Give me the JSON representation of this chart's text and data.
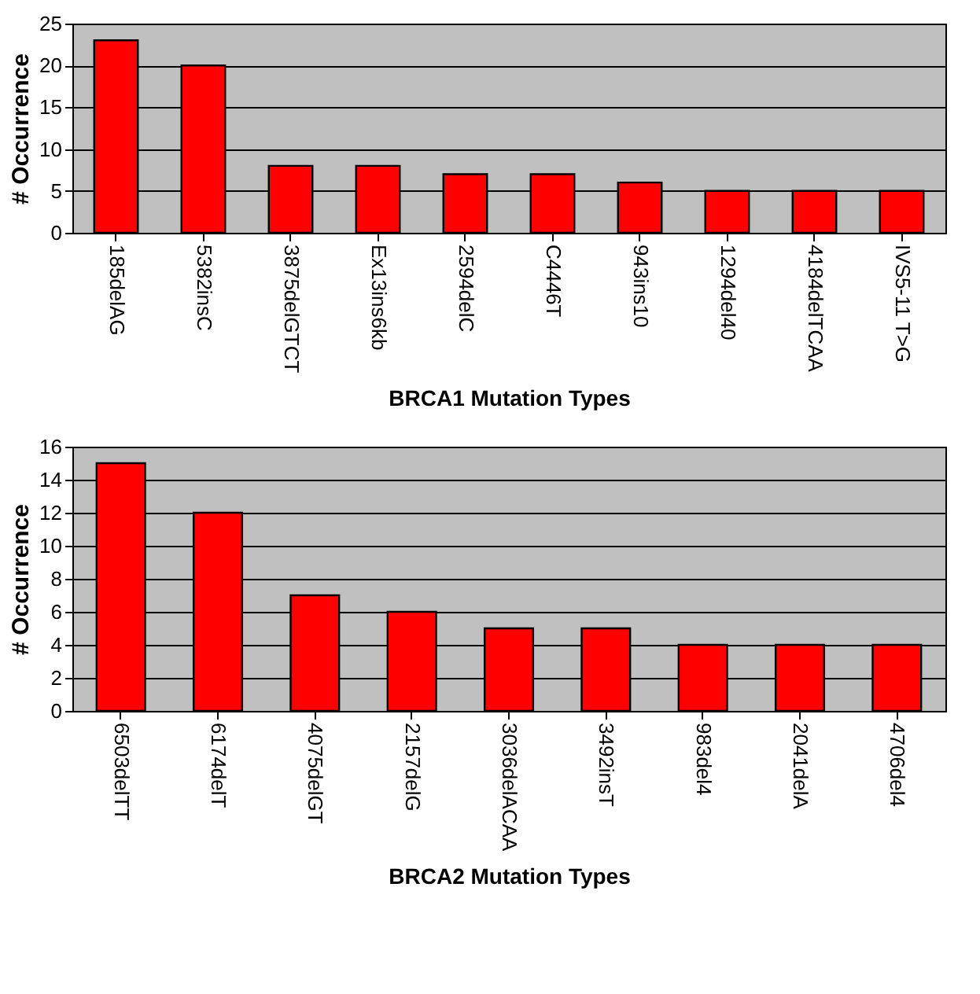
{
  "chart_data": [
    {
      "type": "bar",
      "xlabel": "BRCA1 Mutation Types",
      "ylabel": "# Occurrence",
      "categories": [
        "185delAG",
        "5382insC",
        "3875delGTCT",
        "Ex13ins6kb",
        "2594delC",
        "C4446T",
        "943ins10",
        "1294del40",
        "4184delTCAA",
        "IVS5-11 T>G"
      ],
      "values": [
        23,
        20,
        8,
        8,
        7,
        7,
        6,
        5,
        5,
        5
      ],
      "color": "#ff0000",
      "ylim": [
        0,
        25
      ],
      "yticks": [
        0,
        5,
        10,
        15,
        20,
        25
      ],
      "grid": "y"
    },
    {
      "type": "bar",
      "xlabel": "BRCA2 Mutation Types",
      "ylabel": "# Occurrence",
      "categories": [
        "6503delTT",
        "6174delT",
        "4075delGT",
        "2157delG",
        "3036delACAA",
        "3492insT",
        "983del4",
        "2041delA",
        "4706del4"
      ],
      "values": [
        15,
        12,
        7,
        6,
        5,
        5,
        4,
        4,
        4
      ],
      "color": "#ff0000",
      "ylim": [
        0,
        16
      ],
      "yticks": [
        0,
        2,
        4,
        6,
        8,
        10,
        12,
        14,
        16
      ],
      "grid": "y"
    }
  ]
}
